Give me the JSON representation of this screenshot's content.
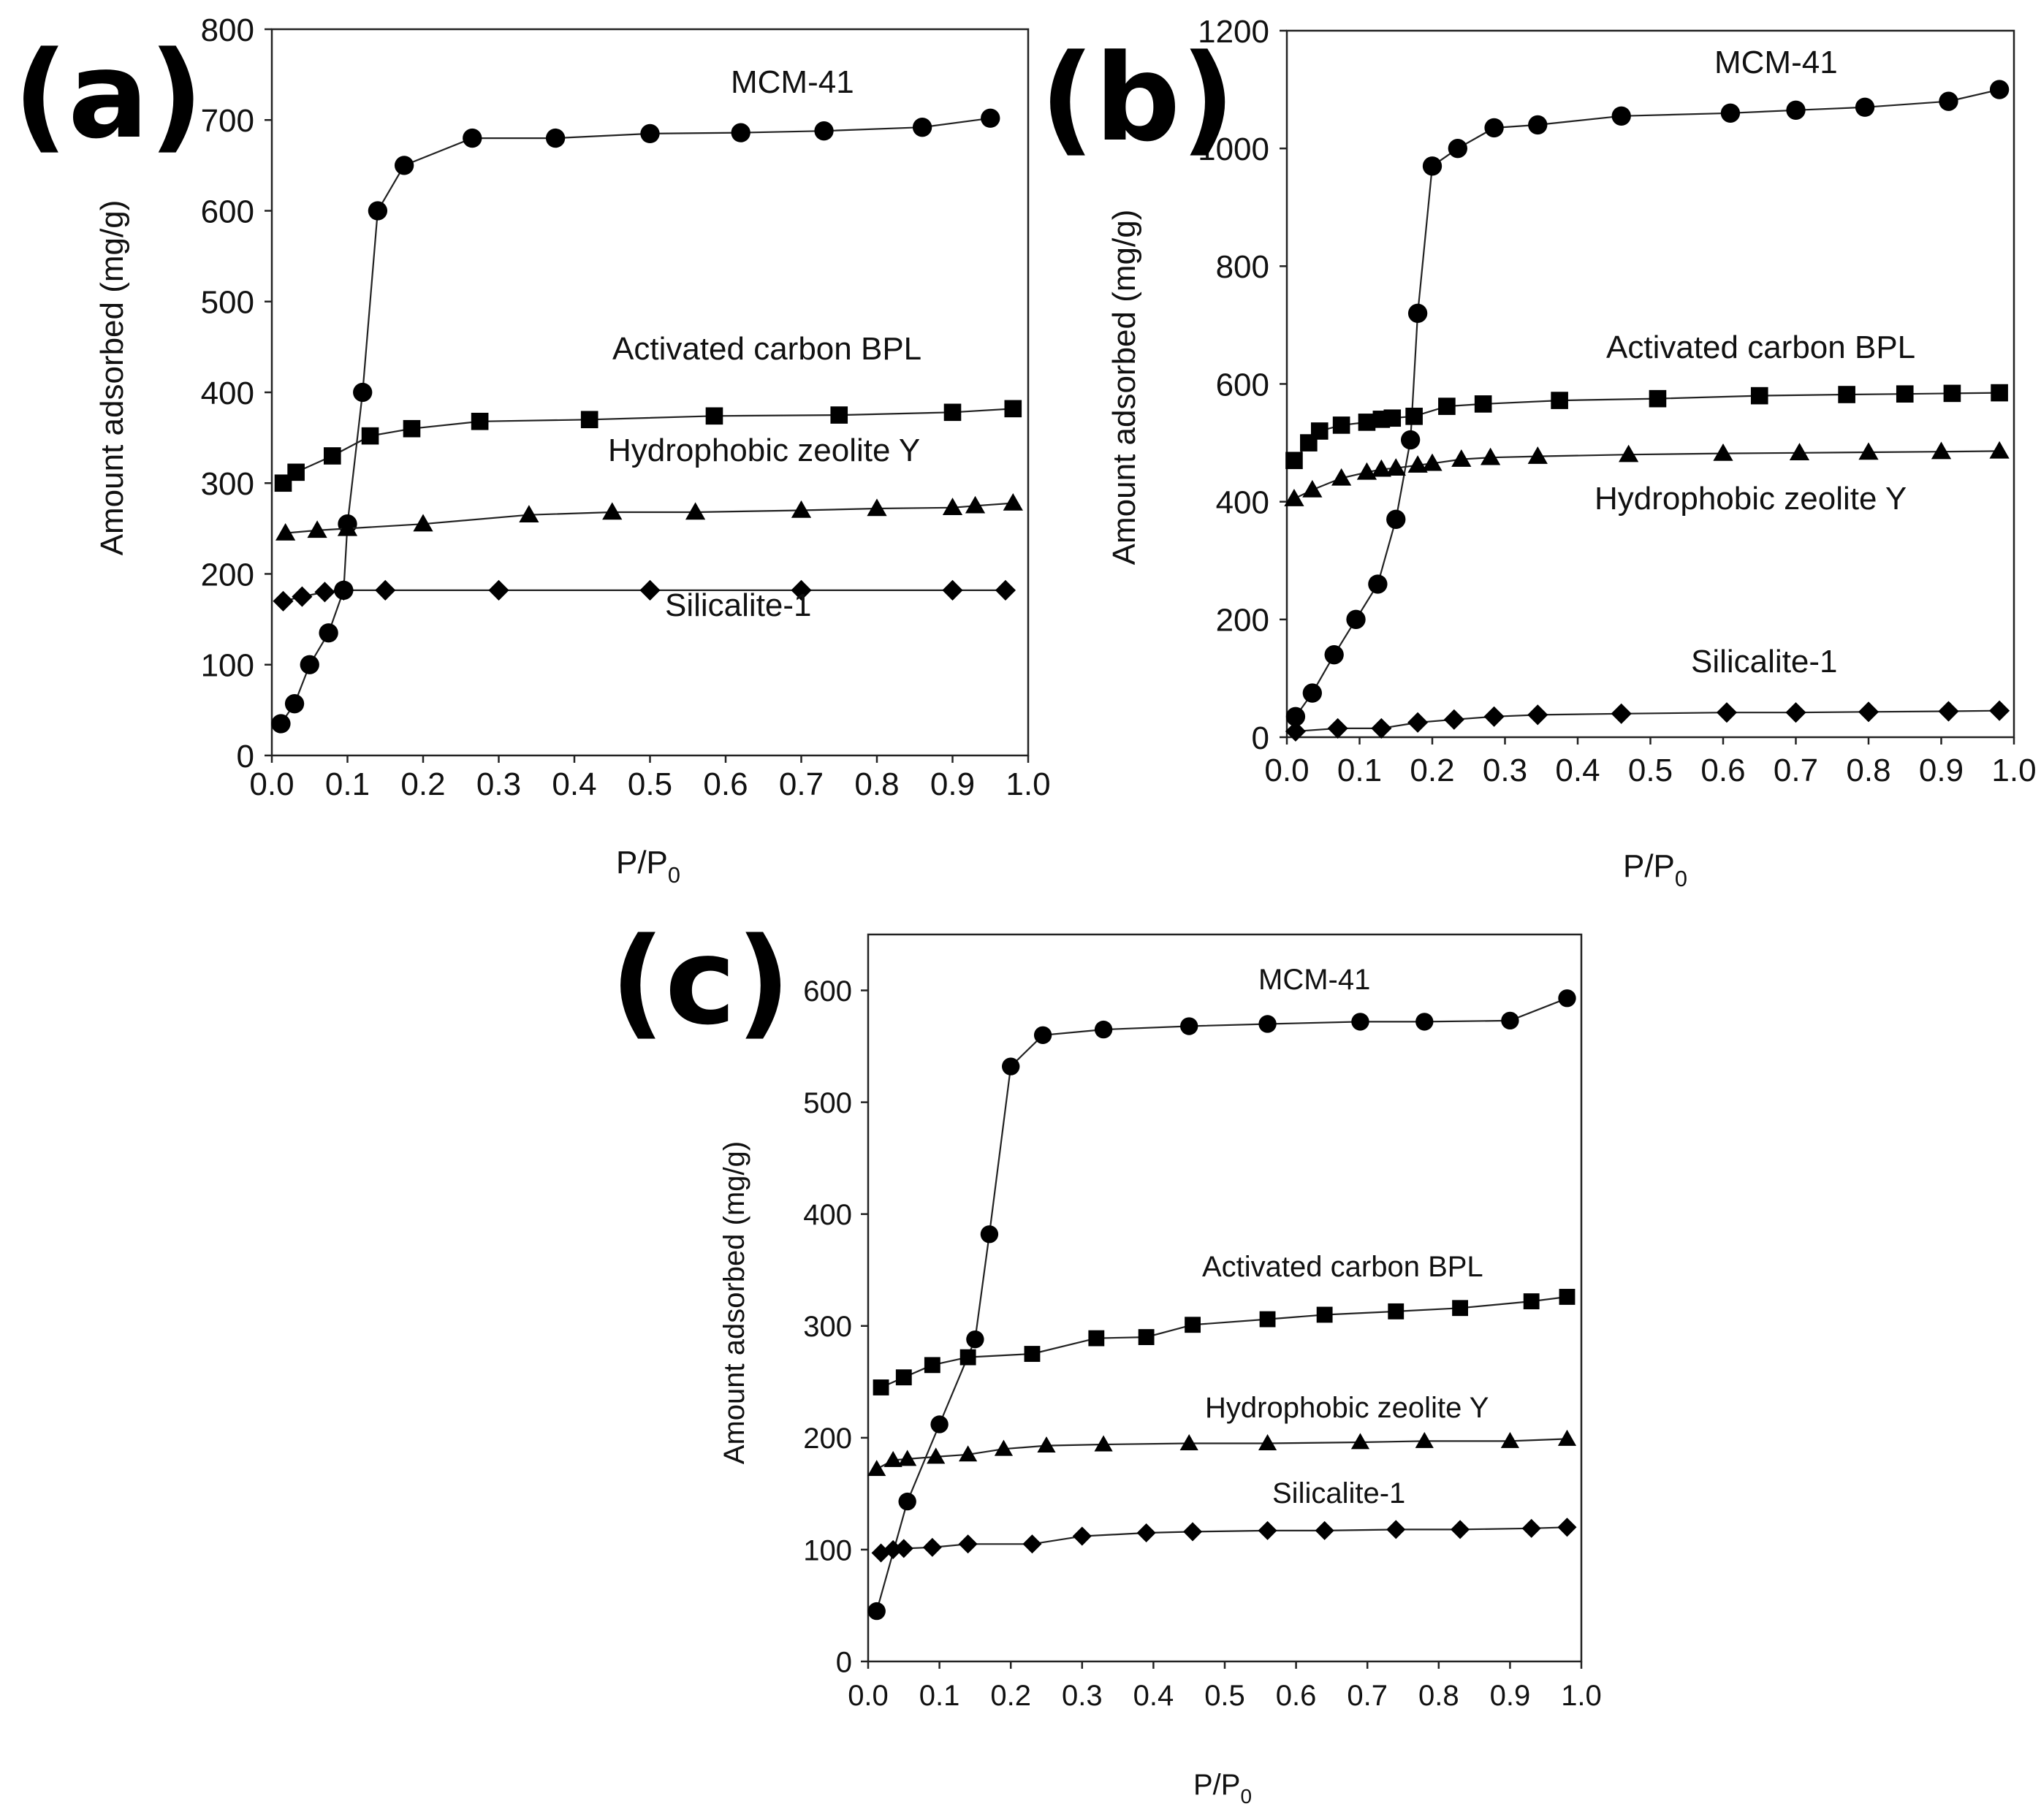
{
  "chart_data": [
    {
      "panel": "(a)",
      "type": "line",
      "xlabel": "P/P",
      "xlabel_sub": "0",
      "ylabel": "Amount adsorbed (mg/g)",
      "xlim": [
        0,
        1
      ],
      "ylim": [
        0,
        800
      ],
      "xticks": [
        0,
        0.1,
        0.2,
        0.3,
        0.4,
        0.5,
        0.6,
        0.7,
        0.8,
        0.9,
        1.0
      ],
      "xtick_labels": [
        "0.0",
        "0.1",
        "0.2",
        "0.3",
        "0.4",
        "0.5",
        "0.6",
        "0.7",
        "0.8",
        "0.9",
        "1.0"
      ],
      "yticks": [
        0,
        100,
        200,
        300,
        400,
        500,
        600,
        700,
        800
      ],
      "ytick_labels": [
        "0",
        "100",
        "200",
        "300",
        "400",
        "500",
        "600",
        "700",
        "800"
      ],
      "series": [
        {
          "name": "MCM-41",
          "marker": "circle",
          "x": [
            0.012,
            0.03,
            0.05,
            0.075,
            0.095,
            0.1,
            0.12,
            0.14,
            0.175,
            0.265,
            0.375,
            0.5,
            0.62,
            0.73,
            0.86,
            0.95
          ],
          "y": [
            35,
            57,
            100,
            135,
            182,
            255,
            400,
            600,
            650,
            680,
            680,
            685,
            686,
            688,
            692,
            702
          ]
        },
        {
          "name": "Activated carbon BPL",
          "marker": "square",
          "x": [
            0.015,
            0.032,
            0.08,
            0.13,
            0.185,
            0.275,
            0.42,
            0.585,
            0.75,
            0.9,
            0.98
          ],
          "y": [
            300,
            312,
            330,
            352,
            360,
            368,
            370,
            374,
            375,
            378,
            382
          ]
        },
        {
          "name": "Hydrophobic zeolite Y",
          "marker": "triangle",
          "x": [
            0.018,
            0.06,
            0.1,
            0.2,
            0.34,
            0.45,
            0.56,
            0.7,
            0.8,
            0.9,
            0.93,
            0.98
          ],
          "y": [
            245,
            248,
            250,
            255,
            265,
            268,
            268,
            270,
            272,
            273,
            275,
            278
          ]
        },
        {
          "name": "Silicalite-1",
          "marker": "diamond",
          "x": [
            0.015,
            0.04,
            0.07,
            0.095,
            0.15,
            0.3,
            0.5,
            0.7,
            0.9,
            0.97
          ],
          "y": [
            170,
            175,
            180,
            182,
            182,
            182,
            182,
            182,
            182,
            182
          ]
        }
      ],
      "annotations": [
        "MCM-41",
        "Activated carbon BPL",
        "Hydrophobic zeolite Y",
        "Silicalite-1"
      ]
    },
    {
      "panel": "(b)",
      "type": "line",
      "xlabel": "P/P",
      "xlabel_sub": "0",
      "ylabel": "Amount adsorbed (mg/g)",
      "xlim": [
        0,
        1
      ],
      "ylim": [
        0,
        1200
      ],
      "xticks": [
        0,
        0.1,
        0.2,
        0.3,
        0.4,
        0.5,
        0.6,
        0.7,
        0.8,
        0.9,
        1.0
      ],
      "xtick_labels": [
        "0.0",
        "0.1",
        "0.2",
        "0.3",
        "0.4",
        "0.5",
        "0.6",
        "0.7",
        "0.8",
        "0.9",
        "1.0"
      ],
      "yticks": [
        0,
        200,
        400,
        600,
        800,
        1000,
        1200
      ],
      "ytick_labels": [
        "0",
        "200",
        "400",
        "600",
        "800",
        "1000",
        "1200"
      ],
      "series": [
        {
          "name": "MCM-41",
          "marker": "circle",
          "x": [
            0.012,
            0.035,
            0.065,
            0.095,
            0.125,
            0.15,
            0.17,
            0.18,
            0.2,
            0.235,
            0.285,
            0.345,
            0.46,
            0.61,
            0.7,
            0.795,
            0.91,
            0.98
          ],
          "y": [
            35,
            75,
            140,
            200,
            260,
            370,
            505,
            720,
            970,
            1000,
            1035,
            1040,
            1055,
            1060,
            1065,
            1070,
            1080,
            1100
          ]
        },
        {
          "name": "Activated carbon BPL",
          "marker": "square",
          "x": [
            0.01,
            0.03,
            0.045,
            0.075,
            0.11,
            0.13,
            0.145,
            0.175,
            0.22,
            0.27,
            0.375,
            0.51,
            0.65,
            0.77,
            0.85,
            0.915,
            0.98
          ],
          "y": [
            470,
            500,
            520,
            530,
            535,
            540,
            542,
            545,
            562,
            566,
            572,
            575,
            580,
            582,
            583,
            584,
            585
          ]
        },
        {
          "name": "Hydrophobic zeolite Y",
          "marker": "triangle",
          "x": [
            0.01,
            0.035,
            0.075,
            0.11,
            0.13,
            0.15,
            0.18,
            0.2,
            0.24,
            0.28,
            0.345,
            0.47,
            0.6,
            0.705,
            0.8,
            0.9,
            0.98
          ],
          "y": [
            405,
            420,
            440,
            450,
            455,
            457,
            462,
            465,
            472,
            475,
            477,
            480,
            482,
            483,
            484,
            485,
            486
          ]
        },
        {
          "name": "Silicalite-1",
          "marker": "diamond",
          "x": [
            0.012,
            0.07,
            0.13,
            0.18,
            0.23,
            0.285,
            0.345,
            0.46,
            0.605,
            0.7,
            0.8,
            0.91,
            0.98
          ],
          "y": [
            10,
            15,
            15,
            25,
            30,
            35,
            38,
            40,
            42,
            42,
            43,
            44,
            45
          ]
        }
      ],
      "annotations": [
        "MCM-41",
        "Activated carbon BPL",
        "Hydrophobic zeolite Y",
        "Silicalite-1"
      ]
    },
    {
      "panel": "(c)",
      "type": "line",
      "xlabel": "P/P",
      "xlabel_sub": "0",
      "ylabel": "Amount adsorbed (mg/g)",
      "xlim": [
        0,
        1
      ],
      "ylim": [
        0,
        650
      ],
      "xticks": [
        0,
        0.1,
        0.2,
        0.3,
        0.4,
        0.5,
        0.6,
        0.7,
        0.8,
        0.9,
        1.0
      ],
      "xtick_labels": [
        "0.0",
        "0.1",
        "0.2",
        "0.3",
        "0.4",
        "0.5",
        "0.6",
        "0.7",
        "0.8",
        "0.9",
        "1.0"
      ],
      "yticks": [
        0,
        100,
        200,
        300,
        400,
        500,
        600
      ],
      "ytick_labels": [
        "0",
        "100",
        "200",
        "300",
        "400",
        "500",
        "600"
      ],
      "series": [
        {
          "name": "MCM-41",
          "marker": "circle",
          "x": [
            0.012,
            0.055,
            0.1,
            0.15,
            0.17,
            0.2,
            0.245,
            0.33,
            0.45,
            0.56,
            0.69,
            0.78,
            0.9,
            0.98
          ],
          "y": [
            45,
            143,
            212,
            288,
            382,
            532,
            560,
            565,
            568,
            570,
            572,
            572,
            573,
            593
          ]
        },
        {
          "name": "Activated carbon BPL",
          "marker": "square",
          "x": [
            0.018,
            0.05,
            0.09,
            0.14,
            0.23,
            0.32,
            0.39,
            0.455,
            0.56,
            0.64,
            0.74,
            0.83,
            0.93,
            0.98
          ],
          "y": [
            245,
            254,
            265,
            272,
            275,
            289,
            290,
            301,
            306,
            310,
            313,
            316,
            322,
            326
          ]
        },
        {
          "name": "Hydrophobic zeolite Y",
          "marker": "triangle",
          "x": [
            0.012,
            0.035,
            0.055,
            0.095,
            0.14,
            0.19,
            0.25,
            0.33,
            0.45,
            0.56,
            0.69,
            0.78,
            0.9,
            0.98
          ],
          "y": [
            172,
            180,
            181,
            183,
            185,
            190,
            193,
            194,
            195,
            195,
            196,
            197,
            197,
            199
          ]
        },
        {
          "name": "Silicalite-1",
          "marker": "diamond",
          "x": [
            0.018,
            0.035,
            0.05,
            0.09,
            0.14,
            0.23,
            0.3,
            0.39,
            0.455,
            0.56,
            0.64,
            0.74,
            0.83,
            0.93,
            0.98
          ],
          "y": [
            97,
            100,
            101,
            102,
            105,
            105,
            112,
            115,
            116,
            117,
            117,
            118,
            118,
            119,
            120
          ]
        }
      ],
      "annotations": [
        "MCM-41",
        "Activated carbon BPL",
        "Hydrophobic zeolite Y",
        "Silicalite-1"
      ]
    }
  ]
}
